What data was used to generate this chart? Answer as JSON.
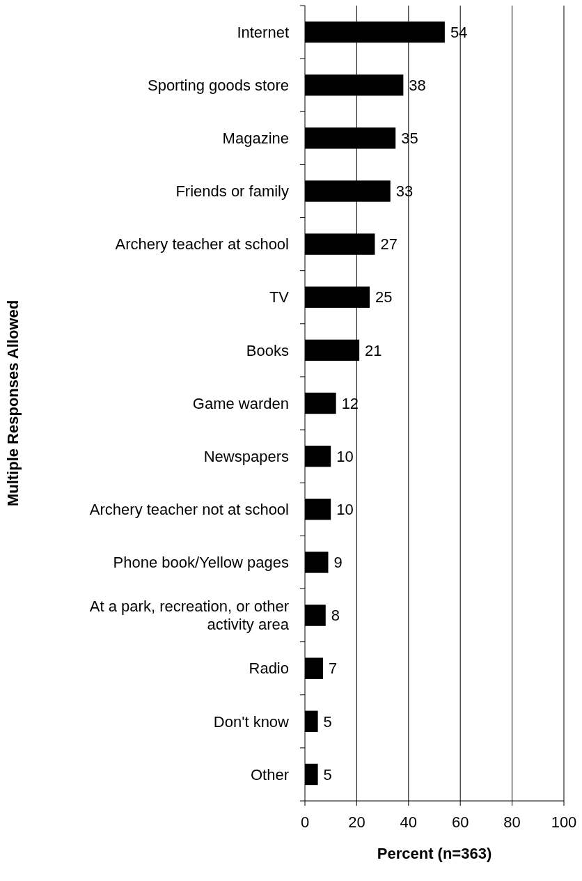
{
  "chart_data": {
    "type": "bar",
    "orientation": "horizontal",
    "xlabel": "Percent (n=363)",
    "ylabel": "Multiple Responses Allowed",
    "categories": [
      "Internet",
      "Sporting goods store",
      "Magazine",
      "Friends or family",
      "Archery teacher at school",
      "TV",
      "Books",
      "Game warden",
      "Newspapers",
      "Archery teacher not at school",
      "Phone book/Yellow pages",
      "At a park, recreation, or other activity area",
      "Radio",
      "Don't know",
      "Other"
    ],
    "values": [
      54,
      38,
      35,
      33,
      27,
      25,
      21,
      12,
      10,
      10,
      9,
      8,
      7,
      5,
      5
    ],
    "color": "#000000",
    "xlim": [
      0,
      100
    ],
    "xticks": [
      0,
      20,
      40,
      60,
      80,
      100
    ],
    "grid": "x",
    "data_labels": true
  }
}
